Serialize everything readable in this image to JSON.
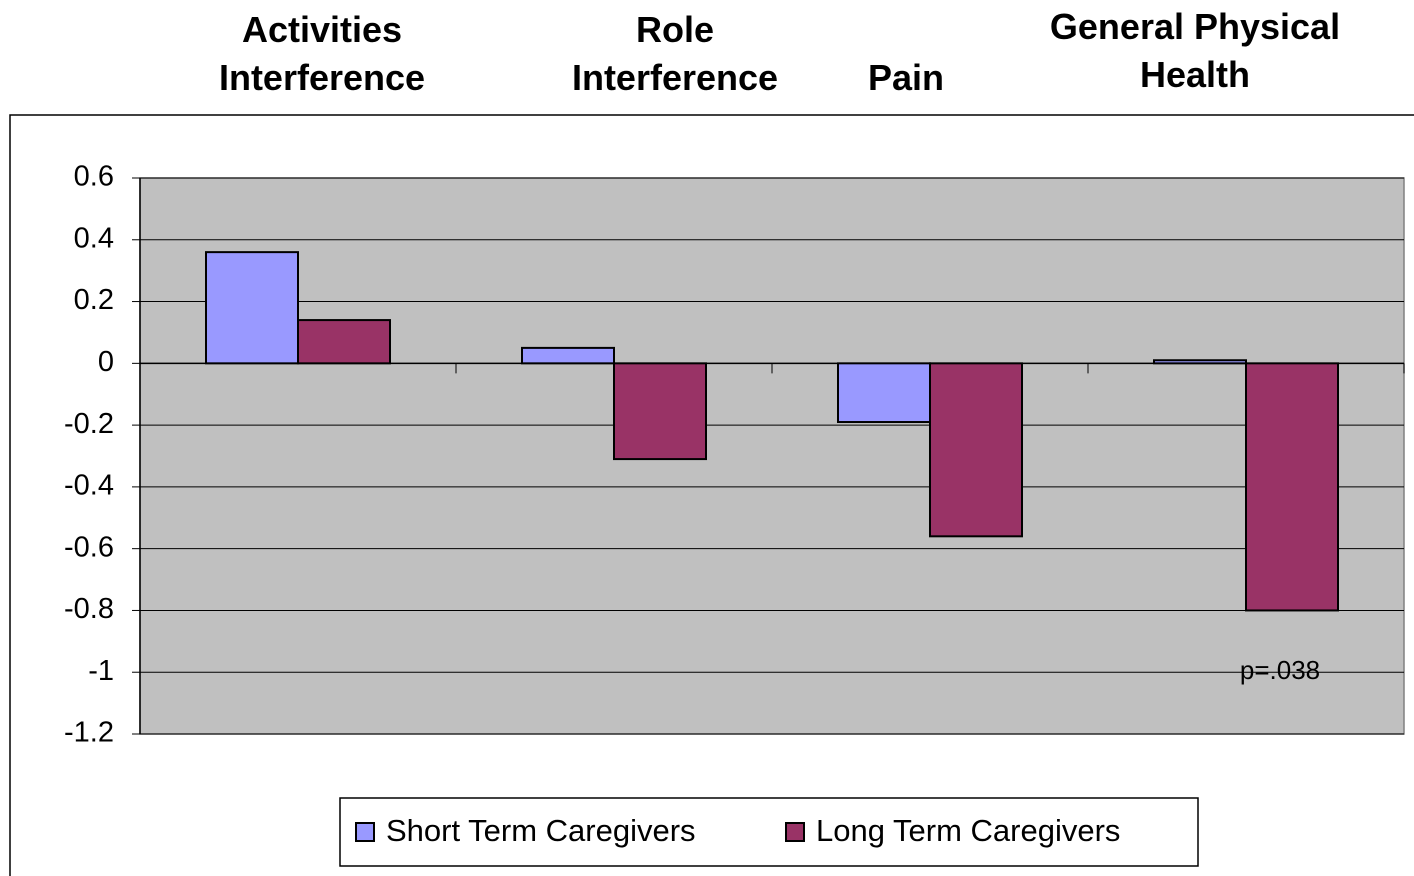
{
  "chart_data": {
    "type": "bar",
    "categories": [
      "Activities\nInterference",
      "Role\nInterference",
      "Pain",
      "General Physical\nHealth"
    ],
    "series": [
      {
        "name": "Short Term Caregivers",
        "color": "#9999ff",
        "values": [
          0.36,
          0.05,
          -0.19,
          0.01
        ]
      },
      {
        "name": "Long Term Caregivers",
        "color": "#993366",
        "values": [
          0.14,
          -0.31,
          -0.56,
          -0.8
        ]
      }
    ],
    "ylim": [
      -1.2,
      0.6
    ],
    "yticks": [
      0.6,
      0.4,
      0.2,
      0,
      -0.2,
      -0.4,
      -0.6,
      -0.8,
      -1,
      -1.2
    ],
    "grid": true,
    "plot_background": "#c0c0c0",
    "legend": "bottom",
    "annotations": [
      "p=.038"
    ]
  }
}
